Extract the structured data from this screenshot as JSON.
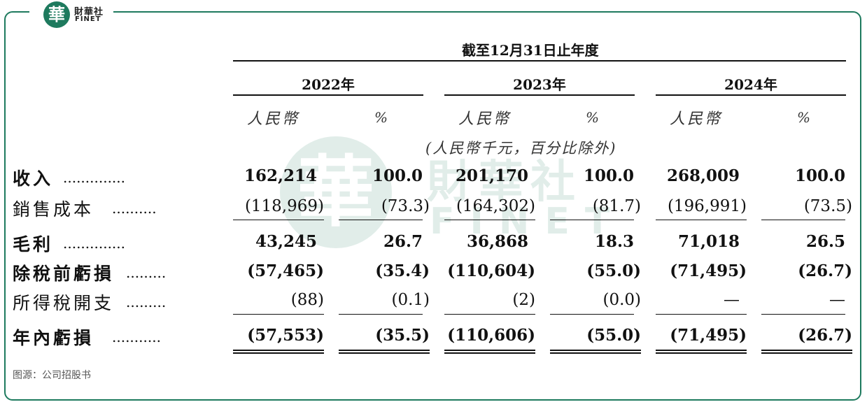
{
  "brand": {
    "badge_char": "華",
    "name_cn": "財華社",
    "name_en": "FINET"
  },
  "table": {
    "period_header": "截至12月31日止年度",
    "years": [
      "2022年",
      "2023年",
      "2024年"
    ],
    "currency_label": "人民幣",
    "percent_label": "%",
    "unit_note": "(人民幣千元，百分比除外)",
    "rows": [
      {
        "label": "收入",
        "dots": "..............",
        "bold": true,
        "values": [
          "162,214",
          "100.0",
          "201,170",
          "100.0",
          "268,009",
          "100.0"
        ]
      },
      {
        "label": "銷售成本",
        "dots": "..........",
        "bold": false,
        "values": [
          "(118,969)",
          "(73.3)",
          "(164,302)",
          "(81.7)",
          "(196,991)",
          "(73.5)"
        ]
      },
      {
        "label": "毛利",
        "dots": "..............",
        "bold": true,
        "values": [
          "43,245",
          "26.7",
          "36,868",
          "18.3",
          "71,018",
          "26.5"
        ]
      },
      {
        "label": "除稅前虧損",
        "dots": ".........",
        "bold": true,
        "values": [
          "(57,465)",
          "(35.4)",
          "(110,604)",
          "(55.0)",
          "(71,495)",
          "(26.7)"
        ]
      },
      {
        "label": "所得稅開支",
        "dots": ".........",
        "bold": false,
        "values": [
          "(88)",
          "(0.1)",
          "(2)",
          "(0.0)",
          "—",
          "—"
        ]
      },
      {
        "label": "年內虧損",
        "dots": "...........",
        "bold": true,
        "values": [
          "(57,553)",
          "(35.5)",
          "(110,606)",
          "(55.0)",
          "(71,495)",
          "(26.7)"
        ]
      }
    ]
  },
  "source": "图源：公司招股书"
}
